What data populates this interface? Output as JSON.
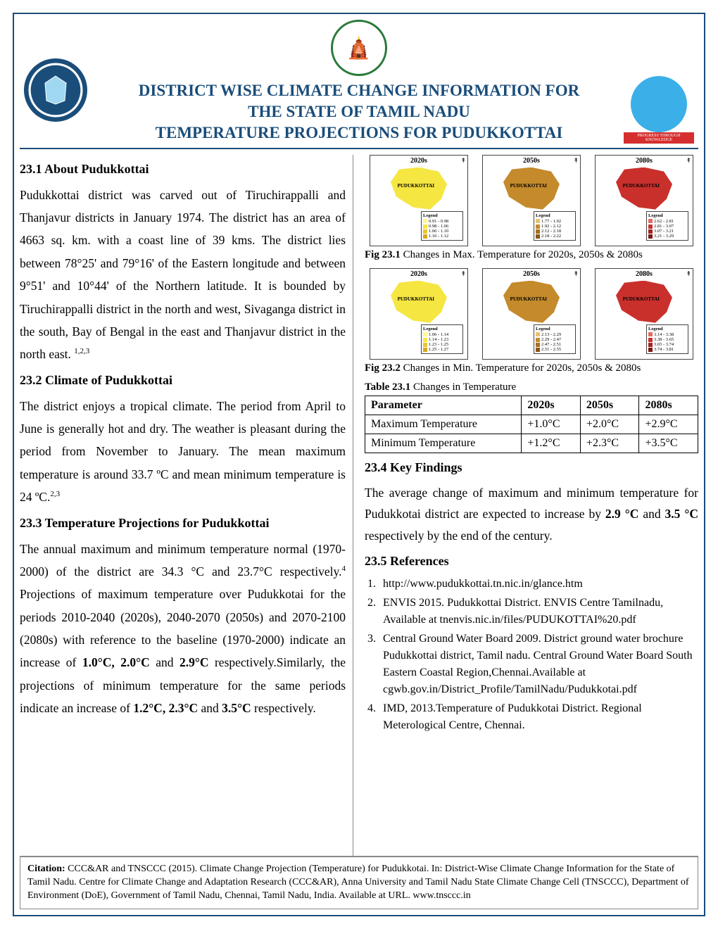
{
  "header": {
    "title_line1": "DISTRICT WISE CLIMATE CHANGE INFORMATION FOR",
    "title_line2": "THE STATE OF TAMIL NADU",
    "title_line3": "TEMPERATURE  PROJECTIONS FOR PUDUKKOTTAI",
    "right_tag": "PROGRESS THROUGH KNOWLEDGE"
  },
  "sections": {
    "about": {
      "heading": "23.1   About  Pudukkottai",
      "text": "Pudukkottai district was carved out of Tiruchirappalli and Thanjavur districts in January 1974.  The district has an area of 4663 sq. km. with a coast line of 39 kms.  The district lies between 78°25' and 79°16' of the Eastern longitude and between 9°51' and 10°44' of the Northern latitude. It is bounded by Tiruchirappalli district in the north and west,  Sivaganga district in the south,  Bay of  Bengal in the east and Thanjavur district in the north east. ",
      "sup": "1,2,3"
    },
    "climate": {
      "heading": "23.2    Climate of Pudukkottai",
      "text": "The district enjoys a tropical climate. The period from April to June is generally hot and dry. The weather is pleasant during the period from November to January. The mean maximum temperature is around 33.7 ºC and mean minimum temperature is 24 ºC.",
      "sup": "2,3"
    },
    "projections": {
      "heading": "23.3  Temperature Projections for  Pudukkottai",
      "text1a": "The annual maximum and minimum temperature normal (1970-2000) of the district are 34.3 °C and 23.7°C respectively.",
      "sup4": "4",
      "text1b": " Projections of maximum temperature over Pudukkotai for the periods 2010-2040 (2020s), 2040-2070 (2050s) and 2070-2100 (2080s) with reference to the baseline (1970-2000) indicate an  increase of ",
      "bold1": "1.0°C, 2.0°C",
      "text1c": " and ",
      "bold2": "2.9°C",
      "text1d": " respectively.Similarly, the projections of minimum temperature for the same periods indicate an increase of ",
      "bold3": "1.2°C,  2.3°C",
      "text1e": " and ",
      "bold4": "3.5°C",
      "text1f": " respectively."
    },
    "findings": {
      "heading": "23.4   Key Findings",
      "text_a": "The average change of  maximum and minimum temperature  for Pudukkotai district  are   expected to increase by ",
      "bold1": "2.9 °C",
      "text_b": " and  ",
      "bold2": "3.5 °C",
      "text_c": " respectively  by the end of the century."
    },
    "references": {
      "heading": "23.5    References",
      "items": [
        "http://www.pudukkottai.tn.nic.in/glance.htm",
        "ENVIS 2015. Pudukkottai District. ENVIS Centre Tamilnadu, Available at tnenvis.nic.in/files/PUDUKOTTAI%20.pdf",
        "Central Ground Water Board 2009. District ground water brochure Pudukkottai district, Tamil nadu. Central Ground Water Board South Eastern Coastal Region,Chennai.Available at cgwb.gov.in/District_Profile/TamilNadu/Pudukkotai.pdf",
        "IMD, 2013.Temperature of  Pudukkotai  District. Regional Meterological Centre, Chennai."
      ]
    }
  },
  "figures": {
    "fig1": {
      "label": "Fig 23.1",
      "caption": " Changes in Max. Temperature for 2020s, 2050s & 2080s",
      "decades": [
        "2020s",
        "2050s",
        "2080s"
      ],
      "district_label": "PUDUKKOTTAI",
      "colors": [
        "#f5e642",
        "#c48a2b",
        "#c9302c"
      ],
      "legends": [
        [
          "0.91 - 0.98",
          "0.98 - 1.06",
          "1.06 - 1.10",
          "1.10 - 1.12"
        ],
        [
          "1.77 - 1.92",
          "1.92 - 2.12",
          "2.12 - 2.18",
          "2.18 - 2.22"
        ],
        [
          "2.62 - 2.81",
          "2.81 - 3.07",
          "3.07 - 3.21",
          "3.21 - 3.29"
        ]
      ],
      "legend_colors": [
        [
          "#fff796",
          "#f5e642",
          "#e8c82d",
          "#d6a91e"
        ],
        [
          "#e8c370",
          "#c48a2b",
          "#a86f1c",
          "#8a5712"
        ],
        [
          "#e36b5f",
          "#c9302c",
          "#a32320",
          "#7d1916"
        ]
      ]
    },
    "fig2": {
      "label": "Fig 23.2",
      "caption": " Changes in Min. Temperature for  2020s, 2050s & 2080s",
      "decades": [
        "2020s",
        "2050s",
        "2080s"
      ],
      "district_label": "PUDUKKOTTAI",
      "colors": [
        "#f5e642",
        "#c48a2b",
        "#c9302c"
      ],
      "legends": [
        [
          "1.06 - 1.14",
          "1.14 - 1.23",
          "1.23 - 1.25",
          "1.25 - 1.27"
        ],
        [
          "2.13 - 2.29",
          "2.29 - 2.47",
          "2.47 - 2.51",
          "2.51 - 2.55"
        ],
        [
          "3.14 - 3.38",
          "3.38 - 3.65",
          "3.65 - 3.74",
          "3.74 - 3.81"
        ]
      ],
      "legend_colors": [
        [
          "#fff796",
          "#f5e642",
          "#e8c82d",
          "#d6a91e"
        ],
        [
          "#e8c370",
          "#c48a2b",
          "#a86f1c",
          "#8a5712"
        ],
        [
          "#e36b5f",
          "#c9302c",
          "#a32320",
          "#7d1916"
        ]
      ]
    }
  },
  "table": {
    "label": "Table 23.1",
    "caption": "  Changes in Temperature",
    "columns": [
      "Parameter",
      "2020s",
      "2050s",
      "2080s"
    ],
    "rows": [
      [
        "Maximum Temperature",
        "+1.0°C",
        "+2.0°C",
        "+2.9°C"
      ],
      [
        "Minimum Temperature",
        "+1.2°C",
        "+2.3°C",
        "+3.5°C"
      ]
    ]
  },
  "citation": {
    "label": "Citation:",
    "text": " CCC&AR and TNSCCC (2015). Climate Change Projection (Temperature) for Pudukkotai. In: District-Wise Climate Change Information for the State of Tamil Nadu. Centre for Climate Change and Adaptation Research (CCC&AR), Anna University and Tamil Nadu State Climate Change Cell (TNSCCC), Department of Environment (DoE), Government of Tamil Nadu, Chennai, Tamil Nadu, India. Available at URL. www.tnsccc.in"
  },
  "styling": {
    "border_color": "#1a4d7a",
    "title_color": "#1a4d7a",
    "body_font_size": 17.5,
    "heading_font_size": 18
  }
}
